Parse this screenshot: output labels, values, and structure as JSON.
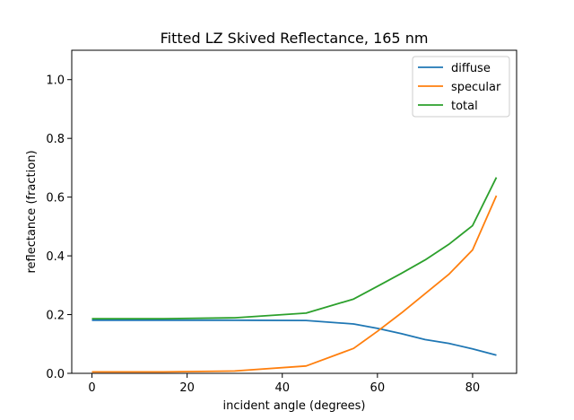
{
  "chart_data": {
    "type": "line",
    "title": "Fitted LZ Skived Reflectance, 165 nm",
    "xlabel": "incident angle (degrees)",
    "ylabel": "reflectance (fraction)",
    "xlim": [
      -4.25,
      89.25
    ],
    "ylim": [
      0,
      1.1
    ],
    "xticks": [
      0,
      20,
      40,
      60,
      80
    ],
    "yticks": [
      0.0,
      0.2,
      0.4,
      0.6,
      0.8,
      1.0
    ],
    "xtick_labels": [
      "0",
      "20",
      "40",
      "60",
      "80"
    ],
    "ytick_labels": [
      "0.0",
      "0.2",
      "0.4",
      "0.6",
      "0.8",
      "1.0"
    ],
    "grid": false,
    "legend_position": "upper right",
    "x": [
      0,
      15,
      30,
      45,
      55,
      60,
      65,
      70,
      75,
      80,
      85
    ],
    "series": [
      {
        "name": "diffuse",
        "color": "#1f77b4",
        "values": [
          0.181,
          0.181,
          0.181,
          0.18,
          0.168,
          0.153,
          0.135,
          0.115,
          0.102,
          0.083,
          0.062
        ]
      },
      {
        "name": "specular",
        "color": "#ff7f0e",
        "values": [
          0.005,
          0.005,
          0.008,
          0.025,
          0.085,
          0.143,
          0.205,
          0.271,
          0.337,
          0.42,
          0.605
        ]
      },
      {
        "name": "total",
        "color": "#2ca02c",
        "values": [
          0.186,
          0.186,
          0.189,
          0.205,
          0.253,
          0.296,
          0.34,
          0.386,
          0.439,
          0.503,
          0.667
        ]
      }
    ]
  }
}
